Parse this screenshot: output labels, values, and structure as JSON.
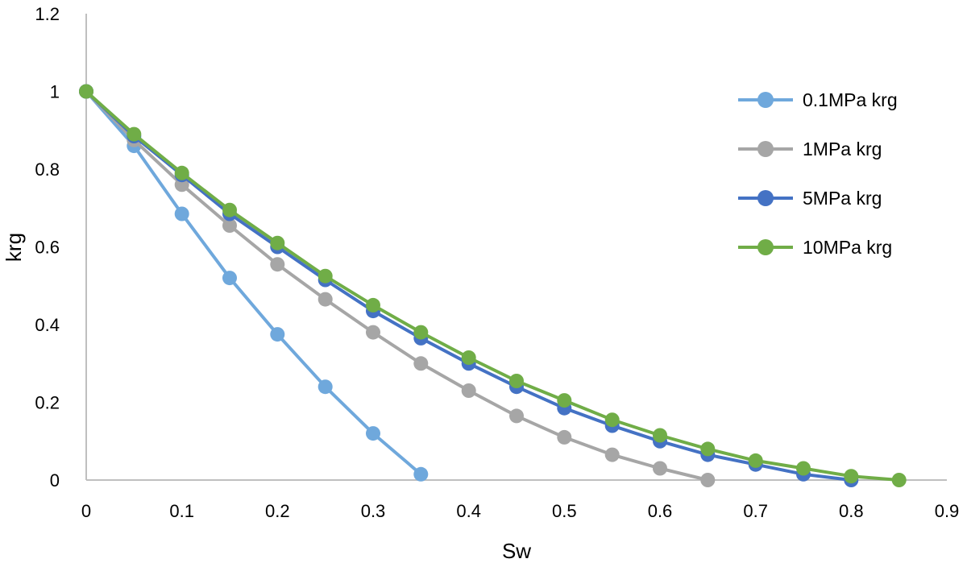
{
  "chart_data": {
    "type": "line",
    "xlabel": "Sw",
    "ylabel": "krg",
    "xlim": [
      0,
      0.9
    ],
    "ylim": [
      0,
      1.2
    ],
    "xticks": [
      "0",
      "0.1",
      "0.2",
      "0.3",
      "0.4",
      "0.5",
      "0.6",
      "0.7",
      "0.8",
      "0.9"
    ],
    "yticks": [
      "0",
      "0.2",
      "0.4",
      "0.6",
      "0.8",
      "1",
      "1.2"
    ],
    "grid": false,
    "legend_position": "right",
    "series": [
      {
        "name": "0.1MPa krg",
        "color": "#6fa8dc",
        "x": [
          0,
          0.05,
          0.1,
          0.15,
          0.2,
          0.25,
          0.3,
          0.35
        ],
        "y": [
          1,
          0.86,
          0.685,
          0.52,
          0.375,
          0.24,
          0.12,
          0.015
        ]
      },
      {
        "name": "1MPa krg",
        "color": "#a6a6a6",
        "x": [
          0,
          0.05,
          0.1,
          0.15,
          0.2,
          0.25,
          0.3,
          0.35,
          0.4,
          0.45,
          0.5,
          0.55,
          0.6,
          0.65
        ],
        "y": [
          1,
          0.875,
          0.76,
          0.655,
          0.555,
          0.465,
          0.38,
          0.3,
          0.23,
          0.165,
          0.11,
          0.065,
          0.03,
          0
        ]
      },
      {
        "name": "5MPa krg",
        "color": "#4472c4",
        "x": [
          0,
          0.05,
          0.1,
          0.15,
          0.2,
          0.25,
          0.3,
          0.35,
          0.4,
          0.45,
          0.5,
          0.55,
          0.6,
          0.65,
          0.7,
          0.75,
          0.8
        ],
        "y": [
          1,
          0.885,
          0.785,
          0.685,
          0.6,
          0.515,
          0.435,
          0.365,
          0.3,
          0.24,
          0.185,
          0.14,
          0.1,
          0.065,
          0.04,
          0.015,
          0
        ]
      },
      {
        "name": "10MPa krg",
        "color": "#70ad47",
        "x": [
          0,
          0.05,
          0.1,
          0.15,
          0.2,
          0.25,
          0.3,
          0.35,
          0.4,
          0.45,
          0.5,
          0.55,
          0.6,
          0.65,
          0.7,
          0.75,
          0.8,
          0.85
        ],
        "y": [
          1,
          0.89,
          0.79,
          0.695,
          0.61,
          0.525,
          0.45,
          0.38,
          0.315,
          0.255,
          0.205,
          0.155,
          0.115,
          0.08,
          0.05,
          0.03,
          0.01,
          0
        ]
      }
    ]
  }
}
